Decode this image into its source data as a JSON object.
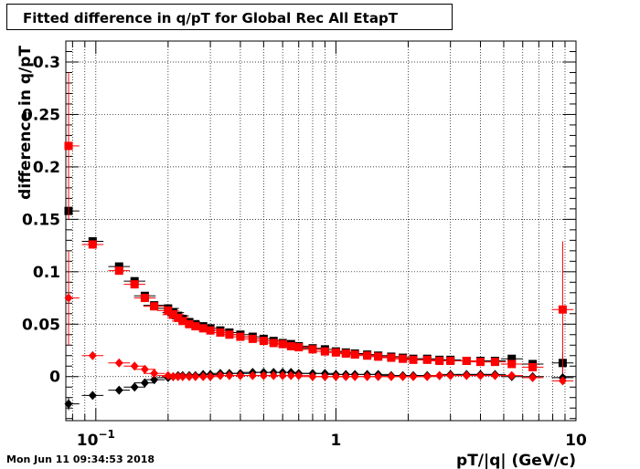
{
  "title": "Fitted difference in q/pT for Global Rec All EtapT",
  "timestamp": "Mon Jun 11 09:34:53 2018",
  "chart_data": {
    "type": "scatter",
    "xlabel": "pT/|q| (GeV/c)",
    "ylabel": "difference in q/pT",
    "xscale": "log",
    "xlim": [
      0.075,
      10
    ],
    "ylim": [
      -0.042,
      0.32
    ],
    "grid": true,
    "yticks": [
      "0",
      "0.05",
      "0.1",
      "0.15",
      "0.2",
      "0.25",
      "0.3"
    ],
    "xticks": [
      "10^-1",
      "1",
      "10"
    ],
    "series": [
      {
        "color": "#000000",
        "marker": "square",
        "points": [
          {
            "x": 0.077,
            "y": 0.158,
            "yerr": 0.008
          },
          {
            "x": 0.097,
            "y": 0.129,
            "yerr": 0.004
          },
          {
            "x": 0.125,
            "y": 0.105,
            "yerr": 0.003
          },
          {
            "x": 0.145,
            "y": 0.091,
            "yerr": 0.003
          },
          {
            "x": 0.16,
            "y": 0.077
          },
          {
            "x": 0.175,
            "y": 0.068
          },
          {
            "x": 0.2,
            "y": 0.065
          },
          {
            "x": 0.21,
            "y": 0.061
          },
          {
            "x": 0.22,
            "y": 0.058
          },
          {
            "x": 0.23,
            "y": 0.055
          },
          {
            "x": 0.245,
            "y": 0.052
          },
          {
            "x": 0.26,
            "y": 0.05
          },
          {
            "x": 0.28,
            "y": 0.048
          },
          {
            "x": 0.3,
            "y": 0.046
          },
          {
            "x": 0.33,
            "y": 0.044
          },
          {
            "x": 0.36,
            "y": 0.042
          },
          {
            "x": 0.4,
            "y": 0.04
          },
          {
            "x": 0.45,
            "y": 0.038
          },
          {
            "x": 0.5,
            "y": 0.036
          },
          {
            "x": 0.55,
            "y": 0.034
          },
          {
            "x": 0.6,
            "y": 0.032
          },
          {
            "x": 0.65,
            "y": 0.031
          },
          {
            "x": 0.7,
            "y": 0.029
          },
          {
            "x": 0.8,
            "y": 0.027
          },
          {
            "x": 0.9,
            "y": 0.026
          },
          {
            "x": 1.0,
            "y": 0.024
          },
          {
            "x": 1.1,
            "y": 0.023
          },
          {
            "x": 1.2,
            "y": 0.022
          },
          {
            "x": 1.35,
            "y": 0.021
          },
          {
            "x": 1.5,
            "y": 0.02
          },
          {
            "x": 1.7,
            "y": 0.019
          },
          {
            "x": 1.9,
            "y": 0.018
          },
          {
            "x": 2.1,
            "y": 0.017
          },
          {
            "x": 2.4,
            "y": 0.017
          },
          {
            "x": 2.7,
            "y": 0.016
          },
          {
            "x": 3.0,
            "y": 0.016
          },
          {
            "x": 3.5,
            "y": 0.015
          },
          {
            "x": 4.0,
            "y": 0.015
          },
          {
            "x": 4.6,
            "y": 0.015
          },
          {
            "x": 5.4,
            "y": 0.017,
            "yerr": 0.003
          },
          {
            "x": 6.6,
            "y": 0.012,
            "yerr": 0.003
          },
          {
            "x": 8.8,
            "y": 0.013,
            "yerr": 0.01
          }
        ]
      },
      {
        "color": "#ff0000",
        "marker": "square",
        "points": [
          {
            "x": 0.077,
            "y": 0.22,
            "yerr": 0.07
          },
          {
            "x": 0.097,
            "y": 0.126,
            "yerr": 0.004
          },
          {
            "x": 0.125,
            "y": 0.101,
            "yerr": 0.003
          },
          {
            "x": 0.145,
            "y": 0.088,
            "yerr": 0.003
          },
          {
            "x": 0.16,
            "y": 0.075
          },
          {
            "x": 0.175,
            "y": 0.067
          },
          {
            "x": 0.2,
            "y": 0.063
          },
          {
            "x": 0.21,
            "y": 0.059
          },
          {
            "x": 0.22,
            "y": 0.056
          },
          {
            "x": 0.23,
            "y": 0.053
          },
          {
            "x": 0.245,
            "y": 0.05
          },
          {
            "x": 0.26,
            "y": 0.048
          },
          {
            "x": 0.28,
            "y": 0.046
          },
          {
            "x": 0.3,
            "y": 0.044
          },
          {
            "x": 0.33,
            "y": 0.042
          },
          {
            "x": 0.36,
            "y": 0.04
          },
          {
            "x": 0.4,
            "y": 0.038
          },
          {
            "x": 0.45,
            "y": 0.036
          },
          {
            "x": 0.5,
            "y": 0.034
          },
          {
            "x": 0.55,
            "y": 0.032
          },
          {
            "x": 0.6,
            "y": 0.031
          },
          {
            "x": 0.65,
            "y": 0.029
          },
          {
            "x": 0.7,
            "y": 0.028
          },
          {
            "x": 0.8,
            "y": 0.026
          },
          {
            "x": 0.9,
            "y": 0.024
          },
          {
            "x": 1.0,
            "y": 0.023
          },
          {
            "x": 1.1,
            "y": 0.022
          },
          {
            "x": 1.2,
            "y": 0.021
          },
          {
            "x": 1.35,
            "y": 0.02
          },
          {
            "x": 1.5,
            "y": 0.019
          },
          {
            "x": 1.7,
            "y": 0.018
          },
          {
            "x": 1.9,
            "y": 0.017
          },
          {
            "x": 2.1,
            "y": 0.016
          },
          {
            "x": 2.4,
            "y": 0.016
          },
          {
            "x": 2.7,
            "y": 0.015
          },
          {
            "x": 3.0,
            "y": 0.015
          },
          {
            "x": 3.5,
            "y": 0.015
          },
          {
            "x": 4.0,
            "y": 0.014
          },
          {
            "x": 4.6,
            "y": 0.014
          },
          {
            "x": 5.4,
            "y": 0.012,
            "yerr": 0.003
          },
          {
            "x": 6.6,
            "y": 0.009,
            "yerr": 0.004
          },
          {
            "x": 8.8,
            "y": 0.064,
            "yerr": 0.065
          }
        ]
      },
      {
        "color": "#000000",
        "marker": "diamond",
        "points": [
          {
            "x": 0.077,
            "y": -0.026,
            "yerr": 0.006
          },
          {
            "x": 0.097,
            "y": -0.018,
            "yerr": 0.002
          },
          {
            "x": 0.125,
            "y": -0.013
          },
          {
            "x": 0.145,
            "y": -0.01
          },
          {
            "x": 0.16,
            "y": -0.006
          },
          {
            "x": 0.175,
            "y": -0.003
          },
          {
            "x": 0.2,
            "y": -0.001
          },
          {
            "x": 0.21,
            "y": 0.0
          },
          {
            "x": 0.22,
            "y": 0.001
          },
          {
            "x": 0.23,
            "y": 0.001
          },
          {
            "x": 0.245,
            "y": 0.001
          },
          {
            "x": 0.26,
            "y": 0.001
          },
          {
            "x": 0.28,
            "y": 0.002
          },
          {
            "x": 0.3,
            "y": 0.002
          },
          {
            "x": 0.33,
            "y": 0.003
          },
          {
            "x": 0.36,
            "y": 0.003
          },
          {
            "x": 0.4,
            "y": 0.003
          },
          {
            "x": 0.45,
            "y": 0.004
          },
          {
            "x": 0.5,
            "y": 0.004
          },
          {
            "x": 0.55,
            "y": 0.004
          },
          {
            "x": 0.6,
            "y": 0.004
          },
          {
            "x": 0.65,
            "y": 0.004
          },
          {
            "x": 0.7,
            "y": 0.003
          },
          {
            "x": 0.8,
            "y": 0.003
          },
          {
            "x": 0.9,
            "y": 0.003
          },
          {
            "x": 1.0,
            "y": 0.002
          },
          {
            "x": 1.1,
            "y": 0.002
          },
          {
            "x": 1.2,
            "y": 0.002
          },
          {
            "x": 1.35,
            "y": 0.002
          },
          {
            "x": 1.5,
            "y": 0.002
          },
          {
            "x": 1.7,
            "y": 0.001
          },
          {
            "x": 1.9,
            "y": 0.001
          },
          {
            "x": 2.1,
            "y": 0.001
          },
          {
            "x": 2.4,
            "y": 0.001
          },
          {
            "x": 2.7,
            "y": 0.001
          },
          {
            "x": 3.0,
            "y": 0.002
          },
          {
            "x": 3.5,
            "y": 0.002
          },
          {
            "x": 4.0,
            "y": 0.002
          },
          {
            "x": 4.6,
            "y": 0.002
          },
          {
            "x": 5.4,
            "y": 0.0
          },
          {
            "x": 6.6,
            "y": 0.0
          },
          {
            "x": 8.8,
            "y": -0.001
          }
        ]
      },
      {
        "color": "#ff0000",
        "marker": "diamond",
        "points": [
          {
            "x": 0.077,
            "y": 0.075,
            "yerr": 0.045
          },
          {
            "x": 0.097,
            "y": 0.02
          },
          {
            "x": 0.125,
            "y": 0.013
          },
          {
            "x": 0.145,
            "y": 0.01
          },
          {
            "x": 0.16,
            "y": 0.007
          },
          {
            "x": 0.175,
            "y": 0.003
          },
          {
            "x": 0.2,
            "y": 0.001
          },
          {
            "x": 0.21,
            "y": 0.0
          },
          {
            "x": 0.22,
            "y": 0.0
          },
          {
            "x": 0.23,
            "y": 0.0
          },
          {
            "x": 0.245,
            "y": 0.0
          },
          {
            "x": 0.26,
            "y": 0.0
          },
          {
            "x": 0.28,
            "y": 0.0
          },
          {
            "x": 0.3,
            "y": 0.0
          },
          {
            "x": 0.33,
            "y": 0.001
          },
          {
            "x": 0.36,
            "y": 0.001
          },
          {
            "x": 0.4,
            "y": 0.001
          },
          {
            "x": 0.45,
            "y": 0.001
          },
          {
            "x": 0.5,
            "y": 0.001
          },
          {
            "x": 0.55,
            "y": 0.001
          },
          {
            "x": 0.6,
            "y": 0.001
          },
          {
            "x": 0.65,
            "y": 0.001
          },
          {
            "x": 0.7,
            "y": 0.001
          },
          {
            "x": 0.8,
            "y": 0.0
          },
          {
            "x": 0.9,
            "y": 0.0
          },
          {
            "x": 1.0,
            "y": 0.0
          },
          {
            "x": 1.1,
            "y": 0.0
          },
          {
            "x": 1.2,
            "y": 0.0
          },
          {
            "x": 1.35,
            "y": 0.0
          },
          {
            "x": 1.5,
            "y": 0.0
          },
          {
            "x": 1.7,
            "y": 0.0
          },
          {
            "x": 1.9,
            "y": 0.0
          },
          {
            "x": 2.1,
            "y": 0.0
          },
          {
            "x": 2.4,
            "y": 0.0
          },
          {
            "x": 2.7,
            "y": 0.001
          },
          {
            "x": 3.0,
            "y": 0.001
          },
          {
            "x": 3.5,
            "y": 0.001
          },
          {
            "x": 4.0,
            "y": 0.001
          },
          {
            "x": 4.6,
            "y": 0.001
          },
          {
            "x": 5.4,
            "y": 0.001
          },
          {
            "x": 6.6,
            "y": -0.001
          },
          {
            "x": 8.8,
            "y": -0.004
          }
        ]
      }
    ]
  }
}
